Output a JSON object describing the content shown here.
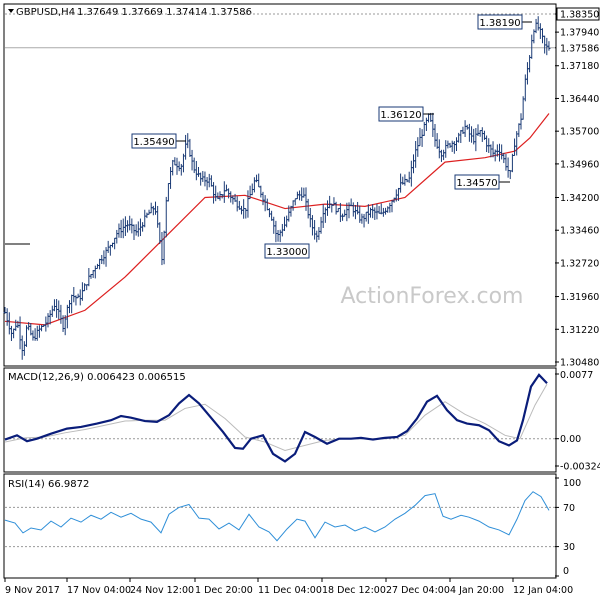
{
  "header": {
    "symbol_timeframe": "GBPUSD,H4",
    "ohlc": "1.37649 1.37669 1.37414 1.37586"
  },
  "watermark": "ActionForex.com",
  "colors": {
    "bars": "#1a3a75",
    "ema": "#dd2020",
    "macd": "#0a1d7a",
    "signal": "#bbbbbb",
    "rsi": "#2f8fd8",
    "axis": "#000000",
    "dotted_levels": "#999999"
  },
  "chart_data": [
    {
      "type": "ohlc",
      "panel": "price",
      "ylim": [
        1.3048,
        1.3835
      ],
      "y_ticks": [
        "1.38350",
        "1.37940",
        "1.37586",
        "1.37180",
        "1.36440",
        "1.35700",
        "1.34960",
        "1.34200",
        "1.33460",
        "1.32720",
        "1.31960",
        "1.31220",
        "1.30480"
      ],
      "last_price": "1.37586",
      "x_ticks": [
        "9 Nov 2017",
        "17 Nov 04:00",
        "24 Nov 12:00",
        "1 Dec 20:00",
        "11 Dec 04:00",
        "18 Dec 12:00",
        "27 Dec 04:00",
        "4 Jan 20:00",
        "12 Jan 04:00"
      ],
      "annotations": [
        {
          "text": "1.35490",
          "value": 1.3549
        },
        {
          "text": "1.33000",
          "value": 1.33
        },
        {
          "text": "1.36120",
          "value": 1.3612
        },
        {
          "text": "1.34570",
          "value": 1.3457
        },
        {
          "text": "1.38190",
          "value": 1.3819
        }
      ],
      "close_path": [
        [
          0,
          1.316
        ],
        [
          7,
          1.311
        ],
        [
          12,
          1.314
        ],
        [
          18,
          1.307
        ],
        [
          22,
          1.313
        ],
        [
          28,
          1.31
        ],
        [
          34,
          1.312
        ],
        [
          42,
          1.314
        ],
        [
          50,
          1.318
        ],
        [
          58,
          1.313
        ],
        [
          66,
          1.32
        ],
        [
          74,
          1.319
        ],
        [
          82,
          1.323
        ],
        [
          92,
          1.327
        ],
        [
          102,
          1.33
        ],
        [
          112,
          1.334
        ],
        [
          122,
          1.336
        ],
        [
          132,
          1.334
        ],
        [
          142,
          1.338
        ],
        [
          150,
          1.34
        ],
        [
          157,
          1.328
        ],
        [
          162,
          1.344
        ],
        [
          168,
          1.35
        ],
        [
          176,
          1.349
        ],
        [
          182,
          1.3549
        ],
        [
          188,
          1.349
        ],
        [
          196,
          1.346
        ],
        [
          204,
          1.346
        ],
        [
          212,
          1.341
        ],
        [
          220,
          1.344
        ],
        [
          230,
          1.341
        ],
        [
          240,
          1.339
        ],
        [
          250,
          1.346
        ],
        [
          258,
          1.342
        ],
        [
          266,
          1.338
        ],
        [
          272,
          1.333
        ],
        [
          280,
          1.336
        ],
        [
          290,
          1.342
        ],
        [
          298,
          1.343
        ],
        [
          306,
          1.336
        ],
        [
          312,
          1.333
        ],
        [
          318,
          1.339
        ],
        [
          326,
          1.341
        ],
        [
          336,
          1.338
        ],
        [
          346,
          1.34
        ],
        [
          356,
          1.337
        ],
        [
          366,
          1.339
        ],
        [
          376,
          1.338
        ],
        [
          386,
          1.341
        ],
        [
          396,
          1.345
        ],
        [
          404,
          1.346
        ],
        [
          410,
          1.352
        ],
        [
          416,
          1.356
        ],
        [
          424,
          1.3605
        ],
        [
          430,
          1.355
        ],
        [
          436,
          1.352
        ],
        [
          444,
          1.354
        ],
        [
          452,
          1.355
        ],
        [
          460,
          1.358
        ],
        [
          468,
          1.355
        ],
        [
          476,
          1.357
        ],
        [
          482,
          1.354
        ],
        [
          488,
          1.352
        ],
        [
          494,
          1.353
        ],
        [
          500,
          1.35
        ],
        [
          505,
          1.347
        ],
        [
          510,
          1.355
        ],
        [
          516,
          1.36
        ],
        [
          520,
          1.368
        ],
        [
          524,
          1.373
        ],
        [
          528,
          1.38
        ],
        [
          532,
          1.381
        ],
        [
          536,
          1.379
        ],
        [
          540,
          1.376
        ],
        [
          544,
          1.3759
        ]
      ],
      "ema_path": [
        [
          0,
          1.314
        ],
        [
          40,
          1.3132
        ],
        [
          80,
          1.3165
        ],
        [
          120,
          1.324
        ],
        [
          160,
          1.333
        ],
        [
          200,
          1.342
        ],
        [
          240,
          1.3425
        ],
        [
          280,
          1.3395
        ],
        [
          320,
          1.3405
        ],
        [
          360,
          1.34
        ],
        [
          400,
          1.342
        ],
        [
          440,
          1.35
        ],
        [
          480,
          1.351
        ],
        [
          510,
          1.3525
        ],
        [
          525,
          1.3555
        ],
        [
          544,
          1.361
        ]
      ],
      "series": [
        {
          "name": "GBPUSD,H4",
          "role": "price"
        }
      ]
    },
    {
      "type": "line",
      "panel": "MACD",
      "title": "MACD(12,26,9) 0.006423 0.006515",
      "ylim": [
        -0.00325,
        0.0077
      ],
      "y_ticks": [
        "0.0077",
        "0.00",
        "-0.003249"
      ],
      "macd_path": [
        [
          0,
          -0.0001
        ],
        [
          12,
          0.0004
        ],
        [
          22,
          -0.0003
        ],
        [
          32,
          0.0
        ],
        [
          46,
          0.0006
        ],
        [
          62,
          0.0012
        ],
        [
          76,
          0.0014
        ],
        [
          92,
          0.0018
        ],
        [
          106,
          0.0022
        ],
        [
          116,
          0.0027
        ],
        [
          126,
          0.0025
        ],
        [
          140,
          0.0021
        ],
        [
          152,
          0.002
        ],
        [
          164,
          0.0028
        ],
        [
          174,
          0.0042
        ],
        [
          184,
          0.0052
        ],
        [
          194,
          0.0042
        ],
        [
          206,
          0.0025
        ],
        [
          218,
          0.0008
        ],
        [
          230,
          -0.0011
        ],
        [
          238,
          -0.0012
        ],
        [
          246,
          0.0
        ],
        [
          258,
          0.0004
        ],
        [
          268,
          -0.0018
        ],
        [
          280,
          -0.0027
        ],
        [
          290,
          -0.0018
        ],
        [
          300,
          0.0008
        ],
        [
          310,
          0.0002
        ],
        [
          322,
          -0.0006
        ],
        [
          334,
          0.0
        ],
        [
          346,
          0.0
        ],
        [
          356,
          0.0001
        ],
        [
          368,
          -0.0001
        ],
        [
          380,
          0.0001
        ],
        [
          392,
          0.0002
        ],
        [
          402,
          0.0009
        ],
        [
          412,
          0.0024
        ],
        [
          422,
          0.0044
        ],
        [
          432,
          0.0051
        ],
        [
          442,
          0.0034
        ],
        [
          452,
          0.0022
        ],
        [
          462,
          0.0018
        ],
        [
          474,
          0.0016
        ],
        [
          484,
          0.001
        ],
        [
          494,
          -0.0003
        ],
        [
          504,
          -0.0008
        ],
        [
          512,
          -0.0002
        ],
        [
          518,
          0.0022
        ],
        [
          526,
          0.0062
        ],
        [
          534,
          0.0076
        ],
        [
          542,
          0.0066
        ]
      ],
      "signal_path": [
        [
          0,
          -0.0004
        ],
        [
          20,
          0.0001
        ],
        [
          40,
          0.0002
        ],
        [
          60,
          0.0007
        ],
        [
          80,
          0.0011
        ],
        [
          100,
          0.0016
        ],
        [
          120,
          0.0021
        ],
        [
          140,
          0.0022
        ],
        [
          160,
          0.0022
        ],
        [
          180,
          0.0036
        ],
        [
          200,
          0.0041
        ],
        [
          220,
          0.0024
        ],
        [
          240,
          0.0002
        ],
        [
          260,
          -0.0004
        ],
        [
          280,
          -0.0014
        ],
        [
          300,
          -0.0008
        ],
        [
          320,
          -0.0002
        ],
        [
          340,
          0.0
        ],
        [
          360,
          0.0
        ],
        [
          380,
          0.0
        ],
        [
          400,
          0.0004
        ],
        [
          420,
          0.0028
        ],
        [
          440,
          0.0044
        ],
        [
          460,
          0.0029
        ],
        [
          480,
          0.0018
        ],
        [
          500,
          0.0004
        ],
        [
          515,
          0.0
        ],
        [
          530,
          0.004
        ],
        [
          542,
          0.0065
        ]
      ]
    },
    {
      "type": "line",
      "panel": "RSI",
      "title": "RSI(14) 66.9872",
      "ylim": [
        0,
        100
      ],
      "y_ticks": [
        "100",
        "70",
        "30",
        "0"
      ],
      "levels": [
        70,
        30
      ],
      "series": [
        {
          "values": [
            [
              0,
              57
            ],
            [
              10,
              54
            ],
            [
              18,
              44
            ],
            [
              26,
              49
            ],
            [
              36,
              47
            ],
            [
              46,
              56
            ],
            [
              56,
              50
            ],
            [
              66,
              59
            ],
            [
              76,
              55
            ],
            [
              86,
              62
            ],
            [
              96,
              58
            ],
            [
              106,
              65
            ],
            [
              116,
              60
            ],
            [
              126,
              64
            ],
            [
              136,
              58
            ],
            [
              146,
              55
            ],
            [
              156,
              44
            ],
            [
              164,
              63
            ],
            [
              174,
              70
            ],
            [
              184,
              73
            ],
            [
              194,
              59
            ],
            [
              204,
              58
            ],
            [
              214,
              48
            ],
            [
              224,
              54
            ],
            [
              234,
              47
            ],
            [
              244,
              63
            ],
            [
              254,
              50
            ],
            [
              264,
              45
            ],
            [
              272,
              36
            ],
            [
              282,
              48
            ],
            [
              292,
              58
            ],
            [
              300,
              56
            ],
            [
              310,
              39
            ],
            [
              320,
              55
            ],
            [
              330,
              50
            ],
            [
              340,
              52
            ],
            [
              350,
              46
            ],
            [
              360,
              50
            ],
            [
              370,
              45
            ],
            [
              380,
              50
            ],
            [
              390,
              58
            ],
            [
              400,
              64
            ],
            [
              410,
              72
            ],
            [
              420,
              82
            ],
            [
              430,
              84
            ],
            [
              438,
              61
            ],
            [
              446,
              58
            ],
            [
              456,
              62
            ],
            [
              464,
              60
            ],
            [
              474,
              56
            ],
            [
              484,
              50
            ],
            [
              494,
              47
            ],
            [
              504,
              42
            ],
            [
              512,
              58
            ],
            [
              520,
              77
            ],
            [
              528,
              86
            ],
            [
              536,
              81
            ],
            [
              544,
              67
            ]
          ]
        }
      ]
    }
  ]
}
